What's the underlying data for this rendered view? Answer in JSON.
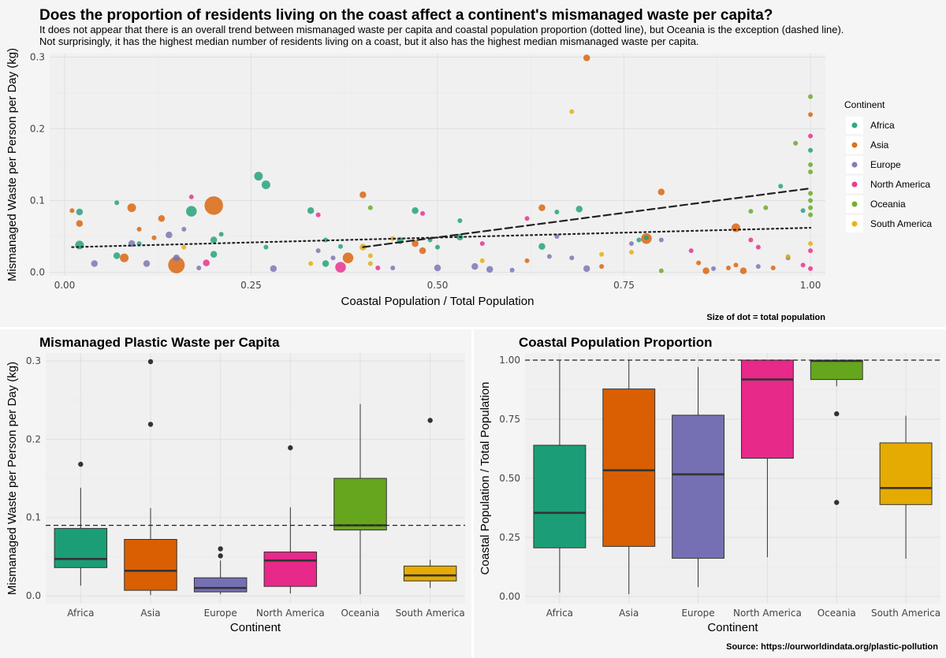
{
  "title": "Does the proportion of residents living on the coast affect a continent's mismanaged waste per capita?",
  "subtitle_lines": [
    "It does not appear that there is an overall trend between mismanaged waste per capita and coastal population proportion (dotted line), but Oceania is the exception (dashed line).",
    "Not surprisingly, it has the highest median number of residents living on a coast, but it also has the highest median mismanaged waste per capita."
  ],
  "size_note": "Size of dot = total population",
  "source": "Source: https://ourworldindata.org/plastic-pollution",
  "colors": {
    "Africa": "#1b9e77",
    "Asia": "#d95f02",
    "Europe": "#7570b3",
    "North America": "#e7298a",
    "Oceania": "#66a61e",
    "South America": "#e6ab02"
  },
  "chart_data": [
    {
      "type": "scatter",
      "title": "",
      "xlabel": "Coastal Population / Total Population",
      "ylabel": "Mismanaged Waste per Person per Day (kg)",
      "xlim": [
        -0.02,
        1.02
      ],
      "ylim": [
        -0.005,
        0.305
      ],
      "xticks": [
        "0.00",
        "0.25",
        "0.50",
        "0.75",
        "1.00"
      ],
      "yticks": [
        "0.0",
        "0.1",
        "0.2",
        "0.3"
      ],
      "grid": true,
      "legend_title": "Continent",
      "legend": [
        "Africa",
        "Asia",
        "Europe",
        "North America",
        "Oceania",
        "South America"
      ],
      "legend_position": "right",
      "trend_lines": [
        {
          "style": "dotted",
          "from": [
            0.01,
            0.035
          ],
          "to": [
            1.0,
            0.062
          ]
        },
        {
          "style": "dashed",
          "from": [
            0.4,
            0.035
          ],
          "to": [
            1.0,
            0.117
          ]
        }
      ],
      "points": [
        {
          "c": "Africa",
          "x": 0.02,
          "y": 0.038,
          "s": 4
        },
        {
          "c": "Africa",
          "x": 0.02,
          "y": 0.084,
          "s": 3
        },
        {
          "c": "Africa",
          "x": 0.07,
          "y": 0.097,
          "s": 2
        },
        {
          "c": "Africa",
          "x": 0.07,
          "y": 0.023,
          "s": 3
        },
        {
          "c": "Africa",
          "x": 0.1,
          "y": 0.04,
          "s": 2
        },
        {
          "c": "Africa",
          "x": 0.17,
          "y": 0.085,
          "s": 5
        },
        {
          "c": "Africa",
          "x": 0.2,
          "y": 0.045,
          "s": 3
        },
        {
          "c": "Africa",
          "x": 0.21,
          "y": 0.053,
          "s": 2
        },
        {
          "c": "Africa",
          "x": 0.2,
          "y": 0.025,
          "s": 3
        },
        {
          "c": "Africa",
          "x": 0.26,
          "y": 0.134,
          "s": 4
        },
        {
          "c": "Africa",
          "x": 0.27,
          "y": 0.122,
          "s": 4
        },
        {
          "c": "Africa",
          "x": 0.27,
          "y": 0.035,
          "s": 2
        },
        {
          "c": "Africa",
          "x": 0.33,
          "y": 0.086,
          "s": 3
        },
        {
          "c": "Africa",
          "x": 0.35,
          "y": 0.045,
          "s": 2
        },
        {
          "c": "Africa",
          "x": 0.35,
          "y": 0.012,
          "s": 3
        },
        {
          "c": "Africa",
          "x": 0.37,
          "y": 0.036,
          "s": 2
        },
        {
          "c": "Africa",
          "x": 0.45,
          "y": 0.044,
          "s": 3
        },
        {
          "c": "Africa",
          "x": 0.47,
          "y": 0.086,
          "s": 3
        },
        {
          "c": "Africa",
          "x": 0.49,
          "y": 0.045,
          "s": 2
        },
        {
          "c": "Africa",
          "x": 0.5,
          "y": 0.035,
          "s": 2
        },
        {
          "c": "Africa",
          "x": 0.53,
          "y": 0.049,
          "s": 3
        },
        {
          "c": "Africa",
          "x": 0.53,
          "y": 0.072,
          "s": 2
        },
        {
          "c": "Africa",
          "x": 0.64,
          "y": 0.036,
          "s": 3
        },
        {
          "c": "Africa",
          "x": 0.66,
          "y": 0.084,
          "s": 2
        },
        {
          "c": "Africa",
          "x": 0.69,
          "y": 0.088,
          "s": 3
        },
        {
          "c": "Africa",
          "x": 0.77,
          "y": 0.045,
          "s": 2
        },
        {
          "c": "Africa",
          "x": 0.78,
          "y": 0.048,
          "s": 2
        },
        {
          "c": "Africa",
          "x": 0.96,
          "y": 0.12,
          "s": 2
        },
        {
          "c": "Africa",
          "x": 0.99,
          "y": 0.086,
          "s": 2
        },
        {
          "c": "Africa",
          "x": 1.0,
          "y": 0.17,
          "s": 2
        },
        {
          "c": "Asia",
          "x": 0.01,
          "y": 0.086,
          "s": 2
        },
        {
          "c": "Asia",
          "x": 0.02,
          "y": 0.068,
          "s": 3
        },
        {
          "c": "Asia",
          "x": 0.08,
          "y": 0.02,
          "s": 4
        },
        {
          "c": "Asia",
          "x": 0.09,
          "y": 0.09,
          "s": 4
        },
        {
          "c": "Asia",
          "x": 0.1,
          "y": 0.06,
          "s": 2
        },
        {
          "c": "Asia",
          "x": 0.12,
          "y": 0.048,
          "s": 2
        },
        {
          "c": "Asia",
          "x": 0.13,
          "y": 0.075,
          "s": 3
        },
        {
          "c": "Asia",
          "x": 0.15,
          "y": 0.01,
          "s": 8
        },
        {
          "c": "Asia",
          "x": 0.2,
          "y": 0.093,
          "s": 9
        },
        {
          "c": "Asia",
          "x": 0.38,
          "y": 0.02,
          "s": 5
        },
        {
          "c": "Asia",
          "x": 0.4,
          "y": 0.108,
          "s": 3
        },
        {
          "c": "Asia",
          "x": 0.47,
          "y": 0.04,
          "s": 3
        },
        {
          "c": "Asia",
          "x": 0.48,
          "y": 0.03,
          "s": 3
        },
        {
          "c": "Asia",
          "x": 0.64,
          "y": 0.09,
          "s": 3
        },
        {
          "c": "Asia",
          "x": 0.7,
          "y": 0.299,
          "s": 3
        },
        {
          "c": "Asia",
          "x": 0.78,
          "y": 0.047,
          "s": 5
        },
        {
          "c": "Asia",
          "x": 0.8,
          "y": 0.112,
          "s": 3
        },
        {
          "c": "Asia",
          "x": 0.85,
          "y": 0.013,
          "s": 2
        },
        {
          "c": "Asia",
          "x": 0.86,
          "y": 0.002,
          "s": 3
        },
        {
          "c": "Asia",
          "x": 0.89,
          "y": 0.006,
          "s": 2
        },
        {
          "c": "Asia",
          "x": 0.9,
          "y": 0.062,
          "s": 4
        },
        {
          "c": "Asia",
          "x": 0.9,
          "y": 0.01,
          "s": 2
        },
        {
          "c": "Asia",
          "x": 0.91,
          "y": 0.002,
          "s": 3
        },
        {
          "c": "Asia",
          "x": 0.95,
          "y": 0.006,
          "s": 2
        },
        {
          "c": "Asia",
          "x": 1.0,
          "y": 0.22,
          "s": 2
        },
        {
          "c": "Asia",
          "x": 0.72,
          "y": 0.008,
          "s": 2
        },
        {
          "c": "Asia",
          "x": 0.62,
          "y": 0.016,
          "s": 2
        },
        {
          "c": "Europe",
          "x": 0.04,
          "y": 0.012,
          "s": 3
        },
        {
          "c": "Europe",
          "x": 0.09,
          "y": 0.04,
          "s": 3
        },
        {
          "c": "Europe",
          "x": 0.11,
          "y": 0.012,
          "s": 3
        },
        {
          "c": "Europe",
          "x": 0.14,
          "y": 0.052,
          "s": 3
        },
        {
          "c": "Europe",
          "x": 0.15,
          "y": 0.02,
          "s": 3
        },
        {
          "c": "Europe",
          "x": 0.16,
          "y": 0.06,
          "s": 2
        },
        {
          "c": "Europe",
          "x": 0.18,
          "y": 0.006,
          "s": 2
        },
        {
          "c": "Europe",
          "x": 0.28,
          "y": 0.005,
          "s": 3
        },
        {
          "c": "Europe",
          "x": 0.34,
          "y": 0.03,
          "s": 2
        },
        {
          "c": "Europe",
          "x": 0.36,
          "y": 0.02,
          "s": 2
        },
        {
          "c": "Europe",
          "x": 0.44,
          "y": 0.006,
          "s": 2
        },
        {
          "c": "Europe",
          "x": 0.5,
          "y": 0.006,
          "s": 3
        },
        {
          "c": "Europe",
          "x": 0.55,
          "y": 0.008,
          "s": 3
        },
        {
          "c": "Europe",
          "x": 0.57,
          "y": 0.004,
          "s": 3
        },
        {
          "c": "Europe",
          "x": 0.65,
          "y": 0.022,
          "s": 2
        },
        {
          "c": "Europe",
          "x": 0.66,
          "y": 0.05,
          "s": 2
        },
        {
          "c": "Europe",
          "x": 0.68,
          "y": 0.02,
          "s": 2
        },
        {
          "c": "Europe",
          "x": 0.7,
          "y": 0.005,
          "s": 3
        },
        {
          "c": "Europe",
          "x": 0.76,
          "y": 0.04,
          "s": 2
        },
        {
          "c": "Europe",
          "x": 0.8,
          "y": 0.045,
          "s": 2
        },
        {
          "c": "Europe",
          "x": 0.87,
          "y": 0.005,
          "s": 2
        },
        {
          "c": "Europe",
          "x": 0.93,
          "y": 0.008,
          "s": 2
        },
        {
          "c": "Europe",
          "x": 0.97,
          "y": 0.02,
          "s": 2
        },
        {
          "c": "Europe",
          "x": 0.6,
          "y": 0.003,
          "s": 2
        },
        {
          "c": "North America",
          "x": 0.17,
          "y": 0.105,
          "s": 2
        },
        {
          "c": "North America",
          "x": 0.19,
          "y": 0.013,
          "s": 3
        },
        {
          "c": "North America",
          "x": 0.37,
          "y": 0.007,
          "s": 5
        },
        {
          "c": "North America",
          "x": 0.42,
          "y": 0.006,
          "s": 2
        },
        {
          "c": "North America",
          "x": 0.48,
          "y": 0.082,
          "s": 2
        },
        {
          "c": "North America",
          "x": 0.56,
          "y": 0.04,
          "s": 2
        },
        {
          "c": "North America",
          "x": 0.62,
          "y": 0.075,
          "s": 2
        },
        {
          "c": "North America",
          "x": 0.84,
          "y": 0.03,
          "s": 2
        },
        {
          "c": "North America",
          "x": 0.92,
          "y": 0.045,
          "s": 2
        },
        {
          "c": "North America",
          "x": 0.93,
          "y": 0.035,
          "s": 2
        },
        {
          "c": "North America",
          "x": 0.99,
          "y": 0.01,
          "s": 2
        },
        {
          "c": "North America",
          "x": 1.0,
          "y": 0.19,
          "s": 2
        },
        {
          "c": "North America",
          "x": 1.0,
          "y": 0.03,
          "s": 2
        },
        {
          "c": "North America",
          "x": 1.0,
          "y": 0.005,
          "s": 2
        },
        {
          "c": "North America",
          "x": 0.34,
          "y": 0.08,
          "s": 2
        },
        {
          "c": "Oceania",
          "x": 0.41,
          "y": 0.09,
          "s": 2
        },
        {
          "c": "Oceania",
          "x": 0.8,
          "y": 0.002,
          "s": 2
        },
        {
          "c": "Oceania",
          "x": 0.92,
          "y": 0.085,
          "s": 2
        },
        {
          "c": "Oceania",
          "x": 0.94,
          "y": 0.09,
          "s": 2
        },
        {
          "c": "Oceania",
          "x": 0.98,
          "y": 0.18,
          "s": 2
        },
        {
          "c": "Oceania",
          "x": 1.0,
          "y": 0.245,
          "s": 2
        },
        {
          "c": "Oceania",
          "x": 1.0,
          "y": 0.15,
          "s": 2
        },
        {
          "c": "Oceania",
          "x": 1.0,
          "y": 0.14,
          "s": 2
        },
        {
          "c": "Oceania",
          "x": 1.0,
          "y": 0.11,
          "s": 2
        },
        {
          "c": "Oceania",
          "x": 1.0,
          "y": 0.1,
          "s": 2
        },
        {
          "c": "Oceania",
          "x": 1.0,
          "y": 0.09,
          "s": 2
        },
        {
          "c": "Oceania",
          "x": 1.0,
          "y": 0.08,
          "s": 2
        },
        {
          "c": "South America",
          "x": 0.16,
          "y": 0.035,
          "s": 2
        },
        {
          "c": "South America",
          "x": 0.33,
          "y": 0.012,
          "s": 2
        },
        {
          "c": "South America",
          "x": 0.4,
          "y": 0.035,
          "s": 3
        },
        {
          "c": "South America",
          "x": 0.41,
          "y": 0.023,
          "s": 2
        },
        {
          "c": "South America",
          "x": 0.41,
          "y": 0.012,
          "s": 2
        },
        {
          "c": "South America",
          "x": 0.44,
          "y": 0.047,
          "s": 2
        },
        {
          "c": "South America",
          "x": 0.56,
          "y": 0.016,
          "s": 2
        },
        {
          "c": "South America",
          "x": 0.68,
          "y": 0.224,
          "s": 2
        },
        {
          "c": "South America",
          "x": 0.72,
          "y": 0.025,
          "s": 2
        },
        {
          "c": "South America",
          "x": 0.76,
          "y": 0.028,
          "s": 2
        },
        {
          "c": "South America",
          "x": 0.97,
          "y": 0.022,
          "s": 2
        },
        {
          "c": "South America",
          "x": 1.0,
          "y": 0.04,
          "s": 2
        }
      ]
    },
    {
      "type": "box",
      "title": "Mismanaged Plastic Waste per Capita",
      "xlabel": "Continent",
      "ylabel": "Mismanaged Waste per Person per Day (kg)",
      "categories": [
        "Africa",
        "Asia",
        "Europe",
        "North America",
        "Oceania",
        "South America"
      ],
      "ylim": [
        -0.01,
        0.31
      ],
      "yticks": [
        "0.0",
        "0.1",
        "0.2",
        "0.3"
      ],
      "reference_line": 0.09,
      "grid": true,
      "boxes": [
        {
          "min": 0.013,
          "q1": 0.036,
          "median": 0.047,
          "q3": 0.086,
          "max": 0.138,
          "outliers": [
            0.168
          ]
        },
        {
          "min": 0.001,
          "q1": 0.007,
          "median": 0.032,
          "q3": 0.072,
          "max": 0.112,
          "outliers": [
            0.219,
            0.299
          ]
        },
        {
          "min": 0.002,
          "q1": 0.005,
          "median": 0.01,
          "q3": 0.023,
          "max": 0.045,
          "outliers": [
            0.051,
            0.06
          ]
        },
        {
          "min": 0.003,
          "q1": 0.012,
          "median": 0.045,
          "q3": 0.056,
          "max": 0.113,
          "outliers": [
            0.189
          ]
        },
        {
          "min": 0.002,
          "q1": 0.084,
          "median": 0.09,
          "q3": 0.15,
          "max": 0.245,
          "outliers": []
        },
        {
          "min": 0.01,
          "q1": 0.019,
          "median": 0.026,
          "q3": 0.038,
          "max": 0.046,
          "outliers": [
            0.224
          ]
        }
      ]
    },
    {
      "type": "box",
      "title": "Coastal Population Proportion",
      "xlabel": "Continent",
      "ylabel": "Coastal Population / Total Population",
      "categories": [
        "Africa",
        "Asia",
        "Europe",
        "North America",
        "Oceania",
        "South America"
      ],
      "ylim": [
        -0.03,
        1.03
      ],
      "yticks": [
        "0.00",
        "0.25",
        "0.50",
        "0.75",
        "1.00"
      ],
      "reference_line": 1.0,
      "grid": true,
      "boxes": [
        {
          "min": 0.017,
          "q1": 0.206,
          "median": 0.354,
          "q3": 0.64,
          "max": 1.0,
          "outliers": []
        },
        {
          "min": 0.01,
          "q1": 0.212,
          "median": 0.534,
          "q3": 0.878,
          "max": 1.0,
          "outliers": []
        },
        {
          "min": 0.04,
          "q1": 0.162,
          "median": 0.517,
          "q3": 0.767,
          "max": 0.971,
          "outliers": []
        },
        {
          "min": 0.166,
          "q1": 0.585,
          "median": 0.918,
          "q3": 1.0,
          "max": 1.0,
          "outliers": []
        },
        {
          "min": 0.89,
          "q1": 0.918,
          "median": 0.997,
          "q3": 1.0,
          "max": 1.0,
          "outliers": [
            0.773,
            0.398
          ]
        },
        {
          "min": 0.16,
          "q1": 0.389,
          "median": 0.459,
          "q3": 0.65,
          "max": 0.765,
          "outliers": []
        }
      ]
    }
  ]
}
